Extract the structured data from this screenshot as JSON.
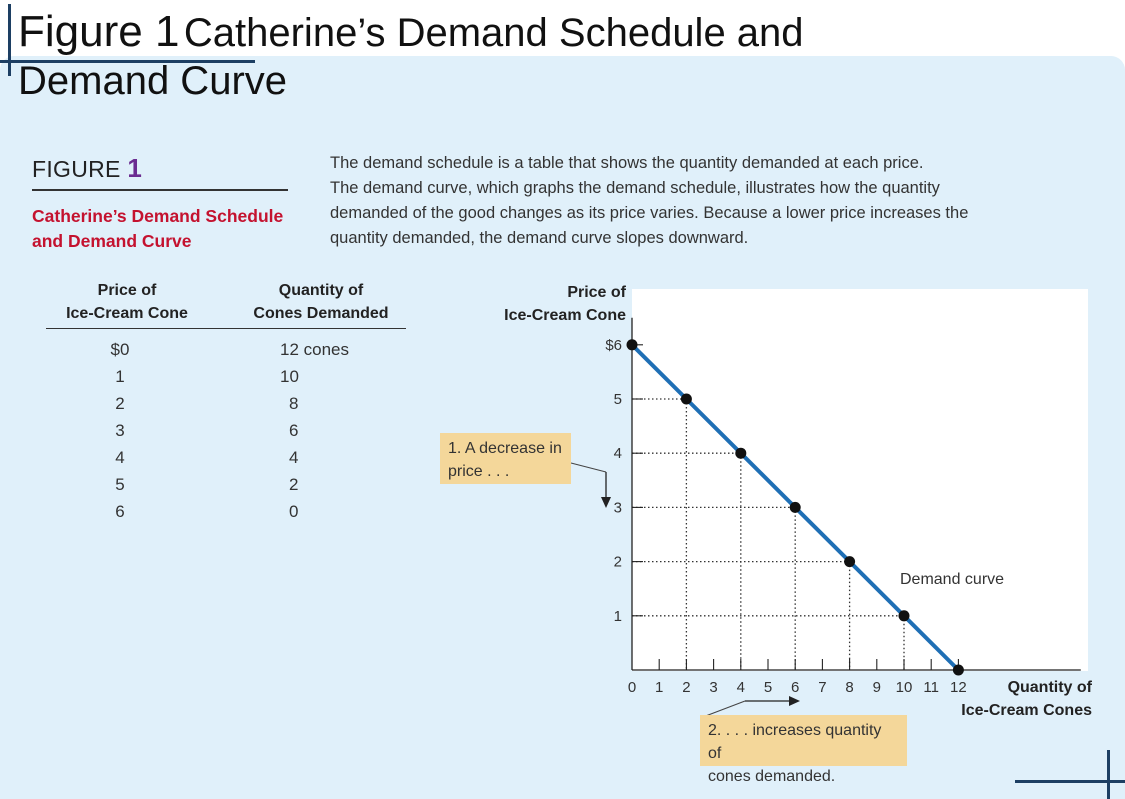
{
  "slide": {
    "title_main": "Figure 1",
    "title_sub": "Catherine’s Demand Schedule and",
    "title_line2": "Demand Curve"
  },
  "figure": {
    "label_word": "FIGURE",
    "label_num": "1",
    "title_line1": "Catherine’s Demand Schedule",
    "title_line2": "and Demand Curve",
    "caption_lines": [
      "The demand schedule is a table that shows the quantity demanded at each price.",
      "The demand curve, which graphs the demand schedule, illustrates how the quantity",
      "demanded of the good changes as its price varies. Because a lower price increases the",
      "quantity demanded, the demand curve slopes downward."
    ]
  },
  "schedule": {
    "price_header": [
      "Price of",
      "Ice-Cream Cone"
    ],
    "quantity_header": [
      "Quantity of",
      "Cones Demanded"
    ],
    "price_values": [
      "$0",
      "1",
      "2",
      "3",
      "4",
      "5",
      "6"
    ],
    "quantity_values": [
      "12 cones",
      "10",
      "8",
      "6",
      "4",
      "2",
      "0"
    ]
  },
  "chart_data": {
    "type": "line",
    "series": [
      {
        "name": "Demand curve",
        "x": [
          0,
          2,
          4,
          6,
          8,
          10,
          12
        ],
        "y": [
          6,
          5,
          4,
          3,
          2,
          1,
          0
        ]
      }
    ],
    "x_ticks": [
      "0",
      "1",
      "2",
      "3",
      "4",
      "5",
      "6",
      "7",
      "8",
      "9",
      "10",
      "11",
      "12"
    ],
    "y_ticks": [
      "1",
      "2",
      "3",
      "4",
      "5",
      "$6"
    ],
    "xlabel": [
      "Quantity of",
      "Ice-Cream Cones"
    ],
    "ylabel": [
      "Price of",
      "Ice-Cream Cone"
    ],
    "xlim": [
      0,
      16.5
    ],
    "ylim": [
      0,
      6.5
    ],
    "curve_label": "Demand curve",
    "annotations": [
      [
        "1. A decrease in",
        "price . . ."
      ],
      [
        "2. . . . increases quantity of",
        "cones demanded."
      ]
    ],
    "colors": {
      "curve": "#1f6fb5",
      "point": "#111111",
      "note": "#f4d79a",
      "title": "#c4122f",
      "accent": "#6b2c91"
    }
  }
}
